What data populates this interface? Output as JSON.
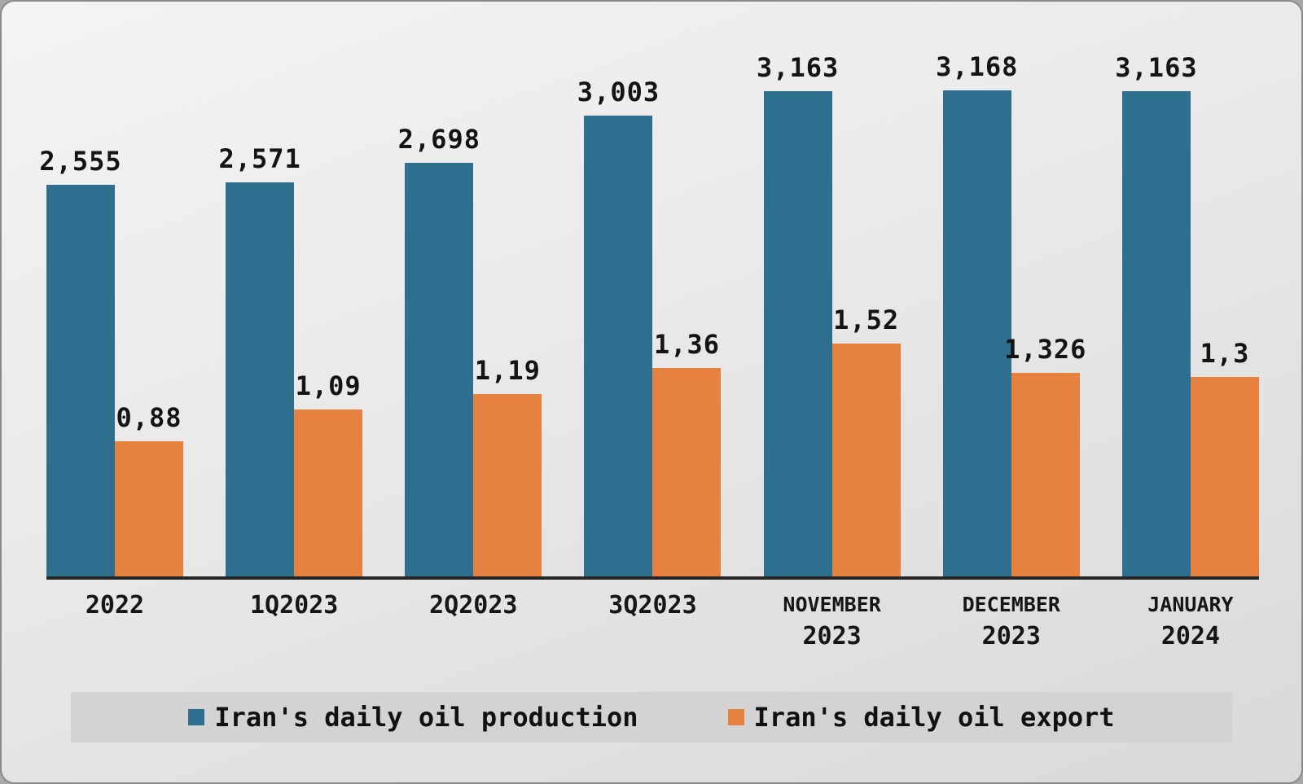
{
  "chart_data": {
    "type": "bar",
    "title": "",
    "xlabel": "",
    "ylabel": "",
    "grid": false,
    "legend_position": "bottom",
    "ylim": [
      0,
      3600
    ],
    "categories": [
      "2022",
      "1Q2023",
      "2Q2023",
      "3Q2023",
      "NOVEMBER 2023",
      "DECEMBER 2023",
      "JANUARY 2024"
    ],
    "category_lines": [
      [
        "2022"
      ],
      [
        "1Q2023"
      ],
      [
        "2Q2023"
      ],
      [
        "3Q2023"
      ],
      [
        "NOVEMBER",
        "2023"
      ],
      [
        "DECEMBER",
        "2023"
      ],
      [
        "JANUARY",
        "2024"
      ]
    ],
    "series": [
      {
        "name": "Iran's daily oil production",
        "color": "#2e6e8e",
        "value_labels": [
          "2,555",
          "2,571",
          "2,698",
          "3,003",
          "3,163",
          "3,168",
          "3,163"
        ],
        "plot_values": [
          2555,
          2571,
          2698,
          3003,
          3163,
          3168,
          3163
        ]
      },
      {
        "name": "Iran's daily oil export",
        "color": "#e6813f",
        "value_labels": [
          "0,88",
          "1,09",
          "1,19",
          "1,36",
          "1,52",
          "1,326",
          "1,3"
        ],
        "plot_values": [
          880,
          1090,
          1190,
          1360,
          1520,
          1326,
          1300
        ]
      }
    ]
  },
  "legend": {
    "items": [
      {
        "label": "Iran's daily oil production",
        "color": "#2e6e8e"
      },
      {
        "label": "Iran's daily oil export",
        "color": "#e6813f"
      }
    ]
  }
}
